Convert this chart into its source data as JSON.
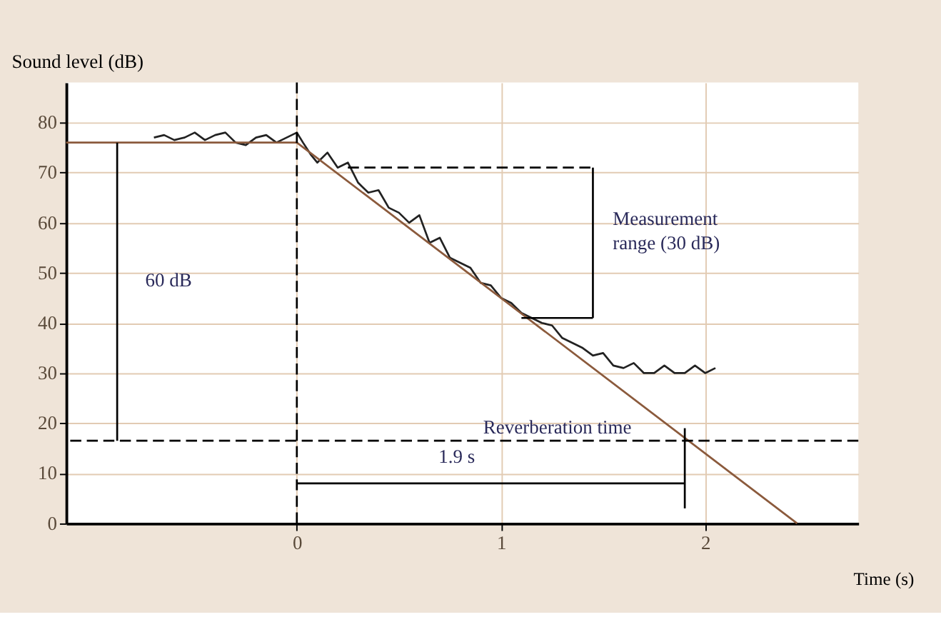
{
  "chart_data": {
    "type": "line",
    "xlabel": "Time (s)",
    "ylabel": "Sound level (dB)",
    "xlim": [
      -1.13,
      2.75
    ],
    "xticks": [
      0,
      1,
      2
    ],
    "ylim": [
      0,
      88
    ],
    "yticks": [
      0,
      10,
      20,
      30,
      40,
      50,
      60,
      70,
      80
    ],
    "grid": true,
    "series": [
      {
        "color": "#222222",
        "x": [
          -0.7,
          -0.65,
          -0.6,
          -0.55,
          -0.5,
          -0.45,
          -0.4,
          -0.35,
          -0.3,
          -0.25,
          -0.2,
          -0.15,
          -0.1,
          -0.05,
          0,
          0.03,
          0.07,
          0.1,
          0.15,
          0.2,
          0.25,
          0.3,
          0.35,
          0.4,
          0.45,
          0.5,
          0.55,
          0.6,
          0.65,
          0.7,
          0.75,
          0.8,
          0.85,
          0.9,
          0.95,
          1.0,
          1.05,
          1.1,
          1.15,
          1.2,
          1.25,
          1.3,
          1.35,
          1.4,
          1.45,
          1.5,
          1.55,
          1.6,
          1.65,
          1.7,
          1.75,
          1.8,
          1.85,
          1.9,
          1.95,
          2.0,
          2.05
        ],
        "values": [
          77,
          77.5,
          76.5,
          77,
          78,
          76.5,
          77.5,
          78,
          76,
          75.5,
          77,
          77.5,
          76,
          77,
          78,
          76,
          73.5,
          72,
          74,
          71,
          72,
          68,
          66,
          66.5,
          63,
          62,
          60,
          61.5,
          56,
          57,
          53,
          52,
          51,
          48,
          47.5,
          45,
          44,
          42,
          41,
          40,
          39.5,
          37,
          36,
          35,
          33.5,
          34,
          31.5,
          31,
          32,
          30,
          30,
          31.5,
          30,
          30,
          31.5,
          30,
          31
        ]
      },
      {
        "color": "#8b5a3c",
        "x": [
          -1.13,
          0,
          2.45
        ],
        "values": [
          76,
          76,
          0
        ]
      },
      {
        "color": "#000000",
        "x": [
          -0.88,
          -0.88
        ],
        "values": [
          76,
          16.5
        ]
      },
      {
        "color": "#000000",
        "x": [
          1.45,
          1.45
        ],
        "values": [
          71,
          41
        ]
      },
      {
        "color": "#000000",
        "x": [
          0,
          1.9
        ],
        "values": [
          8,
          8
        ]
      },
      {
        "color": "#000000",
        "line_style": "dashed",
        "x": [
          0.25,
          1.45
        ],
        "values": [
          71,
          71
        ]
      },
      {
        "color": "#000000",
        "x": [
          1.1,
          1.45
        ],
        "values": [
          41,
          41
        ]
      },
      {
        "color": "#000000",
        "x": [
          1.9,
          1.9
        ],
        "values": [
          19,
          3
        ]
      }
    ],
    "ref_lines": [
      {
        "axis": "y",
        "value": 16.5,
        "label": "Reverberation time",
        "line_style": "dashed",
        "color": "#000000"
      },
      {
        "axis": "x",
        "value": 0,
        "line_style": "dashed",
        "color": "#000000"
      }
    ],
    "annotations": [
      "60 dB",
      "Measurement range (30 dB)",
      "1.9 s"
    ]
  }
}
